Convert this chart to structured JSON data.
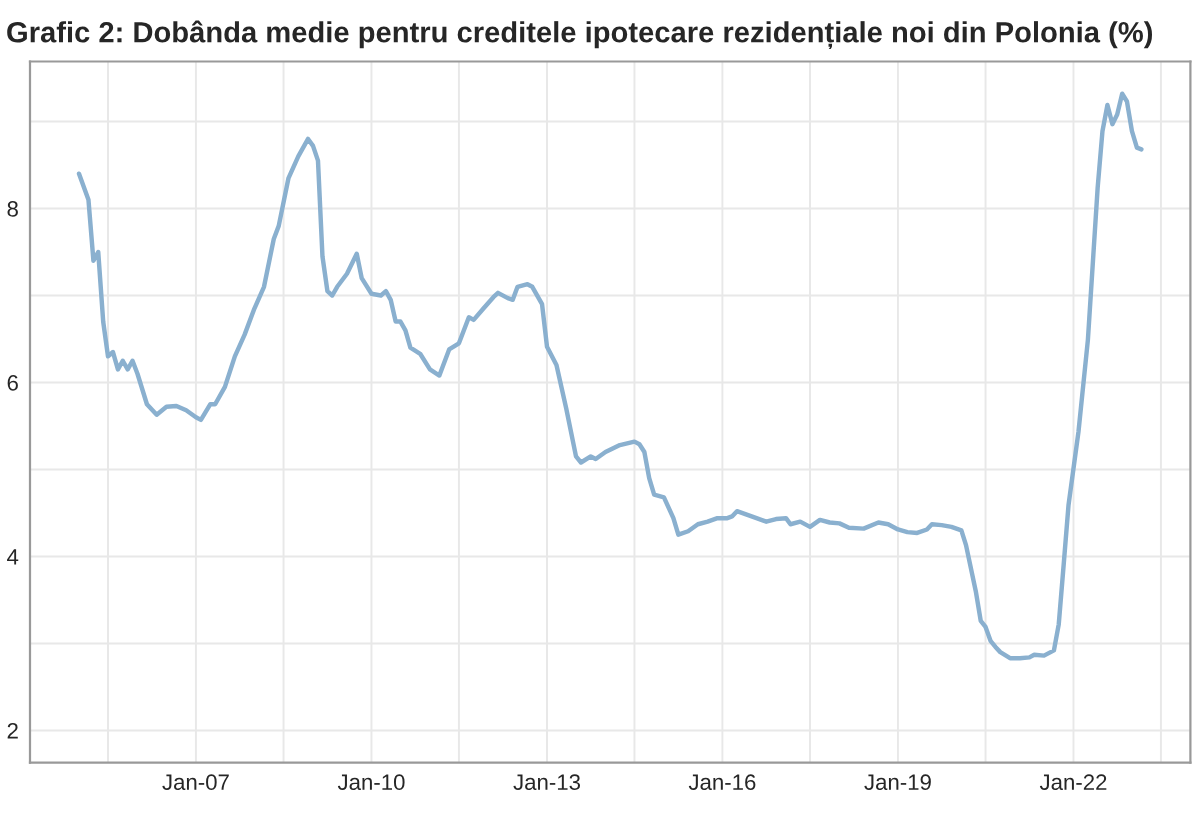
{
  "chart_data": {
    "type": "line",
    "title": "Grafic 2: Dobânda medie pentru creditele ipotecare rezidențiale noi din Polonia (%)",
    "x": [
      "2005-01",
      "2005-03",
      "2005-04",
      "2005-05",
      "2005-06",
      "2005-07",
      "2005-08",
      "2005-09",
      "2005-10",
      "2005-11",
      "2005-12",
      "2006-01",
      "2006-03",
      "2006-05",
      "2006-07",
      "2006-09",
      "2006-11",
      "2007-01",
      "2007-02",
      "2007-04",
      "2007-05",
      "2007-07",
      "2007-09",
      "2007-11",
      "2008-01",
      "2008-03",
      "2008-05",
      "2008-06",
      "2008-08",
      "2008-10",
      "2008-12",
      "2009-01",
      "2009-02",
      "2009-03",
      "2009-04",
      "2009-05",
      "2009-06",
      "2009-08",
      "2009-10",
      "2009-11",
      "2010-01",
      "2010-03",
      "2010-04",
      "2010-05",
      "2010-06",
      "2010-07",
      "2010-08",
      "2010-09",
      "2010-11",
      "2011-01",
      "2011-03",
      "2011-05",
      "2011-07",
      "2011-09",
      "2011-10",
      "2011-12",
      "2012-02",
      "2012-03",
      "2012-05",
      "2012-06",
      "2012-07",
      "2012-09",
      "2012-10",
      "2012-12",
      "2013-01",
      "2013-03",
      "2013-05",
      "2013-07",
      "2013-08",
      "2013-10",
      "2013-11",
      "2014-01",
      "2014-04",
      "2014-07",
      "2014-08",
      "2014-09",
      "2014-10",
      "2014-11",
      "2015-01",
      "2015-03",
      "2015-04",
      "2015-06",
      "2015-08",
      "2015-10",
      "2015-12",
      "2016-02",
      "2016-03",
      "2016-04",
      "2016-06",
      "2016-08",
      "2016-10",
      "2016-12",
      "2017-02",
      "2017-03",
      "2017-05",
      "2017-07",
      "2017-09",
      "2017-11",
      "2018-01",
      "2018-03",
      "2018-06",
      "2018-09",
      "2018-11",
      "2019-01",
      "2019-03",
      "2019-05",
      "2019-07",
      "2019-08",
      "2019-10",
      "2019-12",
      "2020-02",
      "2020-03",
      "2020-05",
      "2020-06",
      "2020-07",
      "2020-08",
      "2020-09",
      "2020-10",
      "2020-12",
      "2021-02",
      "2021-04",
      "2021-05",
      "2021-07",
      "2021-09",
      "2021-10",
      "2021-11",
      "2021-12",
      "2022-02",
      "2022-04",
      "2022-06",
      "2022-07",
      "2022-08",
      "2022-09",
      "2022-10",
      "2022-11",
      "2022-12",
      "2023-01",
      "2023-02",
      "2023-03"
    ],
    "series": [
      {
        "color": "#8ab0cf",
        "values": [
          8.4,
          8.1,
          7.4,
          7.5,
          6.7,
          6.3,
          6.35,
          6.15,
          6.25,
          6.15,
          6.25,
          6.1,
          5.75,
          5.63,
          5.72,
          5.73,
          5.68,
          5.6,
          5.57,
          5.75,
          5.75,
          5.95,
          6.3,
          6.55,
          6.85,
          7.1,
          7.65,
          7.8,
          8.35,
          8.6,
          8.8,
          8.72,
          8.55,
          7.45,
          7.05,
          7.0,
          7.1,
          7.25,
          7.48,
          7.2,
          7.02,
          7.0,
          7.05,
          6.95,
          6.7,
          6.7,
          6.6,
          6.4,
          6.33,
          6.15,
          6.08,
          6.38,
          6.45,
          6.75,
          6.72,
          6.85,
          6.98,
          7.03,
          6.97,
          6.95,
          7.1,
          7.13,
          7.1,
          6.9,
          6.41,
          6.2,
          5.7,
          5.15,
          5.08,
          5.15,
          5.12,
          5.2,
          5.28,
          5.32,
          5.29,
          5.2,
          4.9,
          4.71,
          4.68,
          4.44,
          4.25,
          4.29,
          4.37,
          4.4,
          4.44,
          4.44,
          4.46,
          4.52,
          4.48,
          4.44,
          4.4,
          4.43,
          4.44,
          4.37,
          4.4,
          4.34,
          4.42,
          4.39,
          4.38,
          4.33,
          4.32,
          4.39,
          4.37,
          4.31,
          4.28,
          4.27,
          4.31,
          4.37,
          4.36,
          4.34,
          4.3,
          4.13,
          3.6,
          3.26,
          3.19,
          3.03,
          2.96,
          2.9,
          2.83,
          2.83,
          2.84,
          2.87,
          2.86,
          2.92,
          3.22,
          3.91,
          4.59,
          5.43,
          6.49,
          8.24,
          8.89,
          9.19,
          8.97,
          9.08,
          9.32,
          9.23,
          8.89,
          8.7,
          8.68
        ]
      }
    ],
    "xlim": [
      "2004-03",
      "2024-01"
    ],
    "xticks": [
      {
        "value": "2005-07",
        "label": null
      },
      {
        "value": "2007-01",
        "label": "Jan-07"
      },
      {
        "value": "2008-07",
        "label": null
      },
      {
        "value": "2010-01",
        "label": "Jan-10"
      },
      {
        "value": "2011-07",
        "label": null
      },
      {
        "value": "2013-01",
        "label": "Jan-13"
      },
      {
        "value": "2014-07",
        "label": null
      },
      {
        "value": "2016-01",
        "label": "Jan-16"
      },
      {
        "value": "2017-07",
        "label": null
      },
      {
        "value": "2019-01",
        "label": "Jan-19"
      },
      {
        "value": "2020-07",
        "label": null
      },
      {
        "value": "2022-01",
        "label": "Jan-22"
      },
      {
        "value": "2023-07",
        "label": null
      }
    ],
    "ylim": [
      1.63,
      9.69
    ],
    "yticks": [
      2,
      {
        "value": 3,
        "label": null
      },
      4,
      {
        "value": 5,
        "label": null
      },
      6,
      {
        "value": 7,
        "label": null
      },
      8,
      {
        "value": 9,
        "label": null
      }
    ],
    "grid": true,
    "marker": "none",
    "line_style": "solid"
  }
}
